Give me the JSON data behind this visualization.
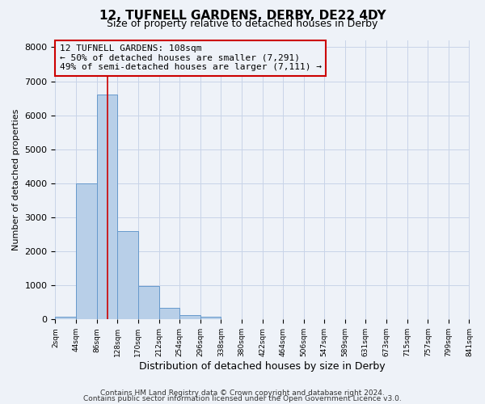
{
  "title": "12, TUFNELL GARDENS, DERBY, DE22 4DY",
  "subtitle": "Size of property relative to detached houses in Derby",
  "xlabel": "Distribution of detached houses by size in Derby",
  "ylabel": "Number of detached properties",
  "bin_edges": [
    2,
    44,
    86,
    128,
    170,
    212,
    254,
    296,
    338,
    380,
    422,
    464,
    506,
    547,
    589,
    631,
    673,
    715,
    757,
    799,
    841
  ],
  "bar_heights": [
    75,
    4000,
    6600,
    2600,
    975,
    330,
    130,
    75,
    0,
    0,
    0,
    0,
    0,
    0,
    0,
    0,
    0,
    0,
    0,
    0
  ],
  "bar_color": "#b8cfe8",
  "bar_edge_color": "#6699cc",
  "grid_color": "#c8d4e8",
  "background_color": "#eef2f8",
  "vline_x": 108,
  "vline_color": "#cc0000",
  "annotation_line1": "12 TUFNELL GARDENS: 108sqm",
  "annotation_line2": "← 50% of detached houses are smaller (7,291)",
  "annotation_line3": "49% of semi-detached houses are larger (7,111) →",
  "annotation_box_color": "#cc0000",
  "ylim": [
    0,
    8200
  ],
  "yticks": [
    0,
    1000,
    2000,
    3000,
    4000,
    5000,
    6000,
    7000,
    8000
  ],
  "tick_labels": [
    "2sqm",
    "44sqm",
    "86sqm",
    "128sqm",
    "170sqm",
    "212sqm",
    "254sqm",
    "296sqm",
    "338sqm",
    "380sqm",
    "422sqm",
    "464sqm",
    "506sqm",
    "547sqm",
    "589sqm",
    "631sqm",
    "673sqm",
    "715sqm",
    "757sqm",
    "799sqm",
    "841sqm"
  ],
  "footer_line1": "Contains HM Land Registry data © Crown copyright and database right 2024.",
  "footer_line2": "Contains public sector information licensed under the Open Government Licence v3.0.",
  "title_fontsize": 11,
  "subtitle_fontsize": 9,
  "ylabel_fontsize": 8,
  "xlabel_fontsize": 9
}
